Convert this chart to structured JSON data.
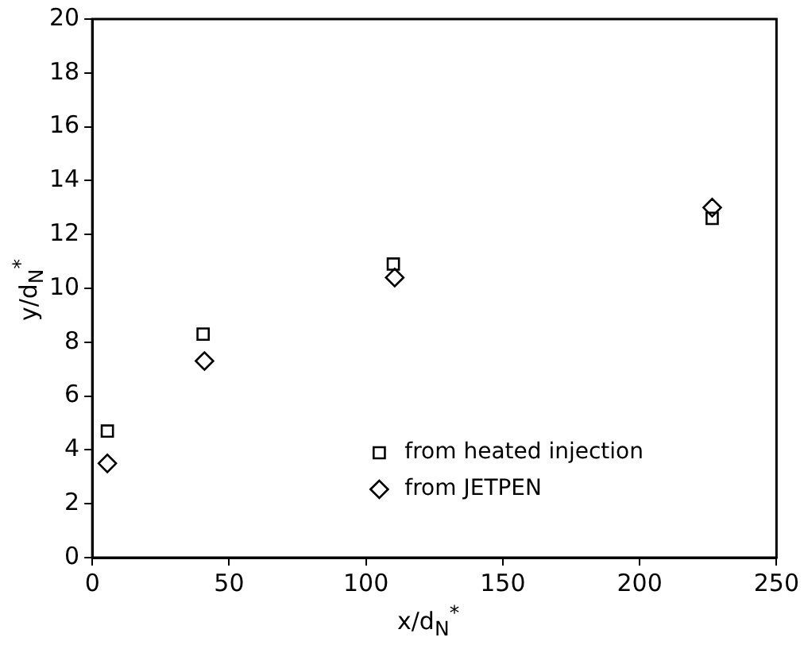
{
  "chart_data": {
    "type": "scatter",
    "xlabel": "x/d$_{N}$$^{*}$",
    "ylabel": "y/d$_{N}$$^{*}$",
    "xlim": [
      0,
      250
    ],
    "xticks": [
      0,
      50,
      100,
      150,
      200,
      250
    ],
    "ylim": [
      0,
      20
    ],
    "yticks": [
      0,
      2,
      4,
      6,
      8,
      10,
      12,
      14,
      16,
      18,
      20
    ],
    "grid": false,
    "legend": "bottom right",
    "series": [
      {
        "name": "from heated injection",
        "color": "#000000",
        "marker": "square",
        "x": [
          5.5,
          40.5,
          110,
          226.5
        ],
        "values": [
          4.7,
          8.3,
          10.9,
          12.6
        ]
      },
      {
        "name": "from JETPEN",
        "color": "#000000",
        "marker": "diamond",
        "x": [
          5.5,
          41,
          110.5,
          226.5
        ],
        "values": [
          3.5,
          7.3,
          10.4,
          13.0
        ]
      }
    ]
  }
}
